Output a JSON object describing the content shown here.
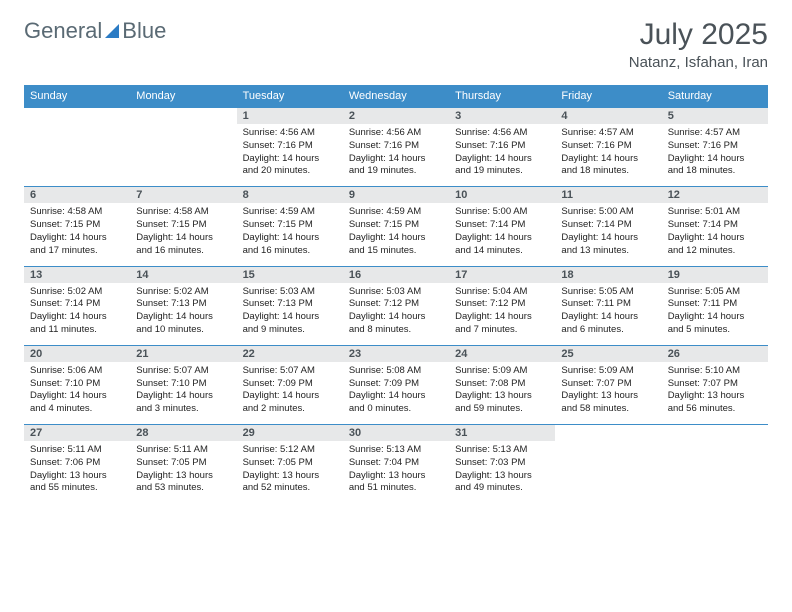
{
  "logo": {
    "text_general": "General",
    "text_blue": "Blue",
    "triangle_color": "#2b7bc4"
  },
  "title": "July 2025",
  "location": "Natanz, Isfahan, Iran",
  "day_names": [
    "Sunday",
    "Monday",
    "Tuesday",
    "Wednesday",
    "Thursday",
    "Friday",
    "Saturday"
  ],
  "colors": {
    "header_bg": "#3d8dc8",
    "header_text": "#ffffff",
    "daynum_bg": "#e7e8e9",
    "text": "#4a5258",
    "border": "#3d8dc8"
  },
  "weeks": [
    [
      {
        "empty": true
      },
      {
        "empty": true
      },
      {
        "num": "1",
        "sunrise": "Sunrise: 4:56 AM",
        "sunset": "Sunset: 7:16 PM",
        "daylight": "Daylight: 14 hours and 20 minutes."
      },
      {
        "num": "2",
        "sunrise": "Sunrise: 4:56 AM",
        "sunset": "Sunset: 7:16 PM",
        "daylight": "Daylight: 14 hours and 19 minutes."
      },
      {
        "num": "3",
        "sunrise": "Sunrise: 4:56 AM",
        "sunset": "Sunset: 7:16 PM",
        "daylight": "Daylight: 14 hours and 19 minutes."
      },
      {
        "num": "4",
        "sunrise": "Sunrise: 4:57 AM",
        "sunset": "Sunset: 7:16 PM",
        "daylight": "Daylight: 14 hours and 18 minutes."
      },
      {
        "num": "5",
        "sunrise": "Sunrise: 4:57 AM",
        "sunset": "Sunset: 7:16 PM",
        "daylight": "Daylight: 14 hours and 18 minutes."
      }
    ],
    [
      {
        "num": "6",
        "sunrise": "Sunrise: 4:58 AM",
        "sunset": "Sunset: 7:15 PM",
        "daylight": "Daylight: 14 hours and 17 minutes."
      },
      {
        "num": "7",
        "sunrise": "Sunrise: 4:58 AM",
        "sunset": "Sunset: 7:15 PM",
        "daylight": "Daylight: 14 hours and 16 minutes."
      },
      {
        "num": "8",
        "sunrise": "Sunrise: 4:59 AM",
        "sunset": "Sunset: 7:15 PM",
        "daylight": "Daylight: 14 hours and 16 minutes."
      },
      {
        "num": "9",
        "sunrise": "Sunrise: 4:59 AM",
        "sunset": "Sunset: 7:15 PM",
        "daylight": "Daylight: 14 hours and 15 minutes."
      },
      {
        "num": "10",
        "sunrise": "Sunrise: 5:00 AM",
        "sunset": "Sunset: 7:14 PM",
        "daylight": "Daylight: 14 hours and 14 minutes."
      },
      {
        "num": "11",
        "sunrise": "Sunrise: 5:00 AM",
        "sunset": "Sunset: 7:14 PM",
        "daylight": "Daylight: 14 hours and 13 minutes."
      },
      {
        "num": "12",
        "sunrise": "Sunrise: 5:01 AM",
        "sunset": "Sunset: 7:14 PM",
        "daylight": "Daylight: 14 hours and 12 minutes."
      }
    ],
    [
      {
        "num": "13",
        "sunrise": "Sunrise: 5:02 AM",
        "sunset": "Sunset: 7:14 PM",
        "daylight": "Daylight: 14 hours and 11 minutes."
      },
      {
        "num": "14",
        "sunrise": "Sunrise: 5:02 AM",
        "sunset": "Sunset: 7:13 PM",
        "daylight": "Daylight: 14 hours and 10 minutes."
      },
      {
        "num": "15",
        "sunrise": "Sunrise: 5:03 AM",
        "sunset": "Sunset: 7:13 PM",
        "daylight": "Daylight: 14 hours and 9 minutes."
      },
      {
        "num": "16",
        "sunrise": "Sunrise: 5:03 AM",
        "sunset": "Sunset: 7:12 PM",
        "daylight": "Daylight: 14 hours and 8 minutes."
      },
      {
        "num": "17",
        "sunrise": "Sunrise: 5:04 AM",
        "sunset": "Sunset: 7:12 PM",
        "daylight": "Daylight: 14 hours and 7 minutes."
      },
      {
        "num": "18",
        "sunrise": "Sunrise: 5:05 AM",
        "sunset": "Sunset: 7:11 PM",
        "daylight": "Daylight: 14 hours and 6 minutes."
      },
      {
        "num": "19",
        "sunrise": "Sunrise: 5:05 AM",
        "sunset": "Sunset: 7:11 PM",
        "daylight": "Daylight: 14 hours and 5 minutes."
      }
    ],
    [
      {
        "num": "20",
        "sunrise": "Sunrise: 5:06 AM",
        "sunset": "Sunset: 7:10 PM",
        "daylight": "Daylight: 14 hours and 4 minutes."
      },
      {
        "num": "21",
        "sunrise": "Sunrise: 5:07 AM",
        "sunset": "Sunset: 7:10 PM",
        "daylight": "Daylight: 14 hours and 3 minutes."
      },
      {
        "num": "22",
        "sunrise": "Sunrise: 5:07 AM",
        "sunset": "Sunset: 7:09 PM",
        "daylight": "Daylight: 14 hours and 2 minutes."
      },
      {
        "num": "23",
        "sunrise": "Sunrise: 5:08 AM",
        "sunset": "Sunset: 7:09 PM",
        "daylight": "Daylight: 14 hours and 0 minutes."
      },
      {
        "num": "24",
        "sunrise": "Sunrise: 5:09 AM",
        "sunset": "Sunset: 7:08 PM",
        "daylight": "Daylight: 13 hours and 59 minutes."
      },
      {
        "num": "25",
        "sunrise": "Sunrise: 5:09 AM",
        "sunset": "Sunset: 7:07 PM",
        "daylight": "Daylight: 13 hours and 58 minutes."
      },
      {
        "num": "26",
        "sunrise": "Sunrise: 5:10 AM",
        "sunset": "Sunset: 7:07 PM",
        "daylight": "Daylight: 13 hours and 56 minutes."
      }
    ],
    [
      {
        "num": "27",
        "sunrise": "Sunrise: 5:11 AM",
        "sunset": "Sunset: 7:06 PM",
        "daylight": "Daylight: 13 hours and 55 minutes."
      },
      {
        "num": "28",
        "sunrise": "Sunrise: 5:11 AM",
        "sunset": "Sunset: 7:05 PM",
        "daylight": "Daylight: 13 hours and 53 minutes."
      },
      {
        "num": "29",
        "sunrise": "Sunrise: 5:12 AM",
        "sunset": "Sunset: 7:05 PM",
        "daylight": "Daylight: 13 hours and 52 minutes."
      },
      {
        "num": "30",
        "sunrise": "Sunrise: 5:13 AM",
        "sunset": "Sunset: 7:04 PM",
        "daylight": "Daylight: 13 hours and 51 minutes."
      },
      {
        "num": "31",
        "sunrise": "Sunrise: 5:13 AM",
        "sunset": "Sunset: 7:03 PM",
        "daylight": "Daylight: 13 hours and 49 minutes."
      },
      {
        "empty": true
      },
      {
        "empty": true
      }
    ]
  ]
}
